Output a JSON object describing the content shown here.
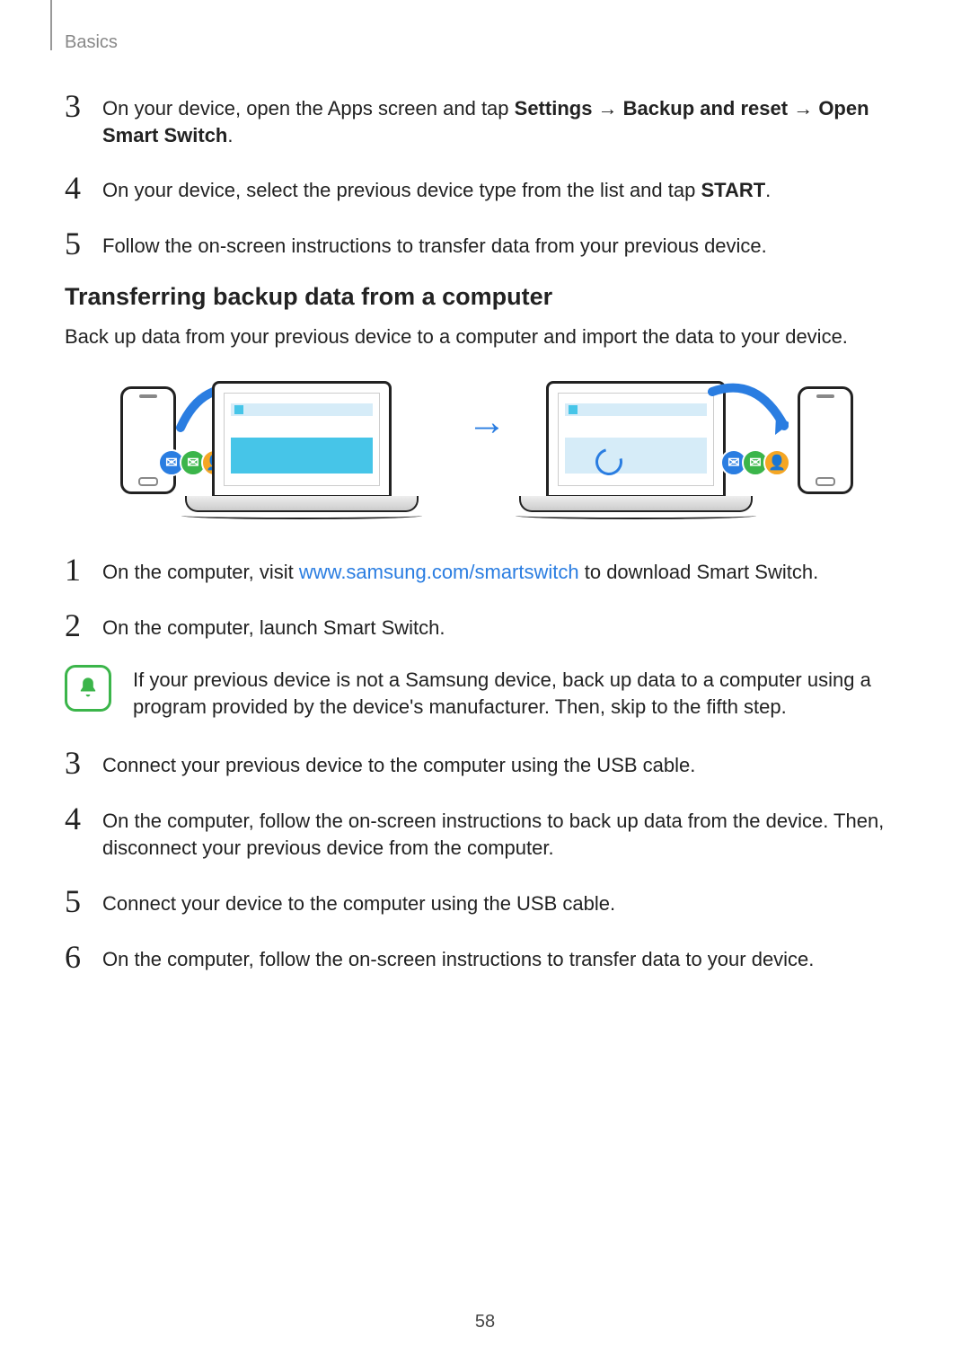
{
  "header": {
    "section": "Basics"
  },
  "topSteps": [
    {
      "num": "3",
      "parts": [
        {
          "t": "On your device, open the Apps screen and tap "
        },
        {
          "t": "Settings",
          "b": true
        },
        {
          "t": " → "
        },
        {
          "t": "Backup and reset",
          "b": true
        },
        {
          "t": " → "
        },
        {
          "t": "Open Smart Switch",
          "b": true
        },
        {
          "t": "."
        }
      ]
    },
    {
      "num": "4",
      "parts": [
        {
          "t": "On your device, select the previous device type from the list and tap "
        },
        {
          "t": "START",
          "b": true
        },
        {
          "t": "."
        }
      ]
    },
    {
      "num": "5",
      "parts": [
        {
          "t": "Follow the on-screen instructions to transfer data from your previous device."
        }
      ]
    }
  ],
  "section": {
    "heading": "Transferring backup data from a computer",
    "intro": "Back up data from your previous device to a computer and import the data to your device."
  },
  "bottomStepsA": [
    {
      "num": "1",
      "parts": [
        {
          "t": "On the computer, visit "
        },
        {
          "t": "www.samsung.com/smartswitch",
          "link": true
        },
        {
          "t": " to download Smart Switch."
        }
      ]
    },
    {
      "num": "2",
      "parts": [
        {
          "t": "On the computer, launch Smart Switch."
        }
      ]
    }
  ],
  "note": {
    "text": "If your previous device is not a Samsung device, back up data to a computer using a program provided by the device's manufacturer. Then, skip to the fifth step."
  },
  "bottomStepsB": [
    {
      "num": "3",
      "parts": [
        {
          "t": "Connect your previous device to the computer using the USB cable."
        }
      ]
    },
    {
      "num": "4",
      "parts": [
        {
          "t": "On the computer, follow the on-screen instructions to back up data from the device. Then, disconnect your previous device from the computer."
        }
      ]
    },
    {
      "num": "5",
      "parts": [
        {
          "t": "Connect your device to the computer using the USB cable."
        }
      ]
    },
    {
      "num": "6",
      "parts": [
        {
          "t": "On the computer, follow the on-screen instructions to transfer data to your device."
        }
      ]
    }
  ],
  "pageNumber": "58",
  "colors": {
    "link": "#2a7de1",
    "noteBorder": "#3bb54a",
    "headerRule": "#999999",
    "headerText": "#888888"
  },
  "illustration": {
    "arrowColor": "#2a7de1",
    "clusterColors": [
      "#2a7de1",
      "#3bb54a",
      "#f5a623",
      "#e94b35"
    ],
    "screenAccent": "#46c5e8",
    "screenLight": "#d6ecf8"
  }
}
